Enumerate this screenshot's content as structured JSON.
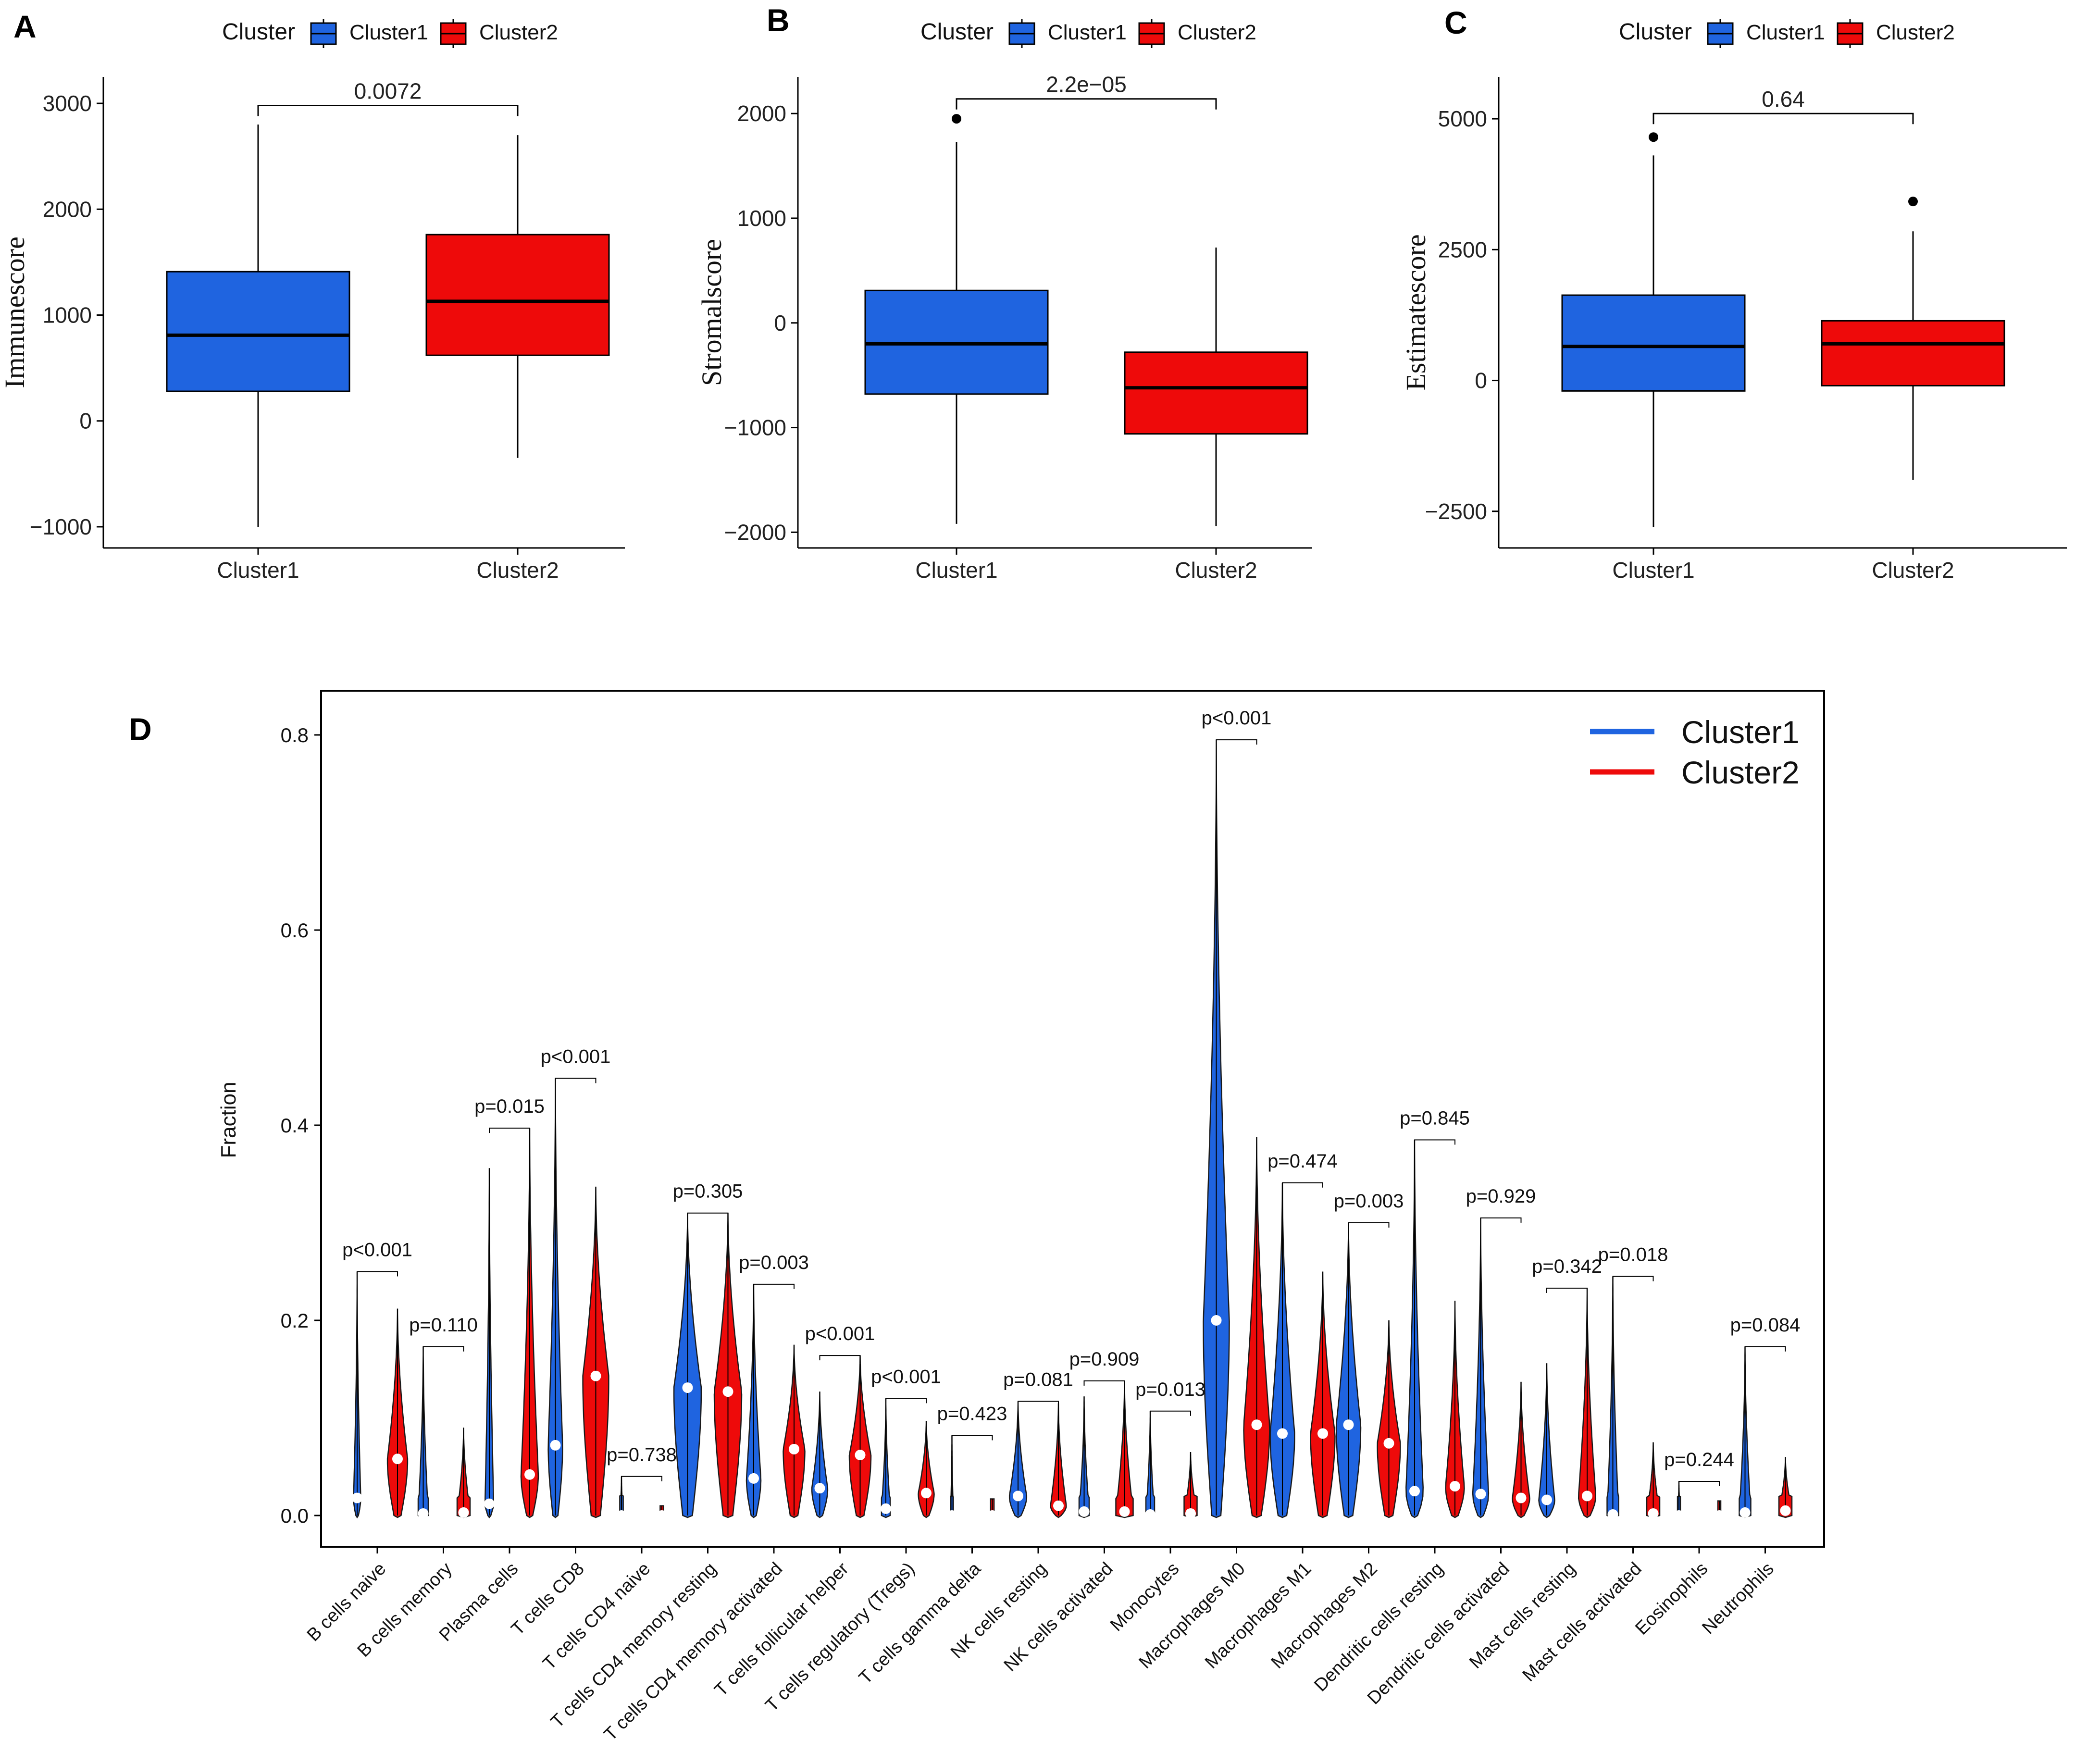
{
  "colors": {
    "cluster1": "#1f64e0",
    "cluster2": "#ee0a0a",
    "axis": "#000000"
  },
  "chart_data": [
    {
      "panel": "A",
      "type": "box",
      "legend": {
        "title": "Cluster",
        "entries": [
          "Cluster1",
          "Cluster2"
        ]
      },
      "ylabel": "Immunescore",
      "categories": [
        "Cluster1",
        "Cluster2"
      ],
      "ylim": [
        -1200,
        3250
      ],
      "yticks": [
        -1000,
        0,
        1000,
        2000,
        3000
      ],
      "ytick_labels": [
        "−1000",
        "0",
        "1000",
        "2000",
        "3000"
      ],
      "boxes": [
        {
          "name": "Cluster1",
          "min": -1000,
          "q1": 280,
          "median": 810,
          "q3": 1410,
          "max": 2800,
          "outliers": []
        },
        {
          "name": "Cluster2",
          "min": -350,
          "q1": 620,
          "median": 1130,
          "q3": 1760,
          "max": 2700,
          "outliers": []
        }
      ],
      "pvalue": "0.0072",
      "bracket_y": 2980
    },
    {
      "panel": "B",
      "type": "box",
      "legend": {
        "title": "Cluster",
        "entries": [
          "Cluster1",
          "Cluster2"
        ]
      },
      "ylabel": "Stromalscore",
      "categories": [
        "Cluster1",
        "Cluster2"
      ],
      "ylim": [
        -2150,
        2350
      ],
      "yticks": [
        -2000,
        -1000,
        0,
        1000,
        2000
      ],
      "ytick_labels": [
        "−2000",
        "−1000",
        "0",
        "1000",
        "2000"
      ],
      "boxes": [
        {
          "name": "Cluster1",
          "min": -1920,
          "q1": -680,
          "median": -200,
          "q3": 310,
          "max": 1730,
          "outliers": [
            1950
          ]
        },
        {
          "name": "Cluster2",
          "min": -1940,
          "q1": -1060,
          "median": -620,
          "q3": -280,
          "max": 720,
          "outliers": []
        }
      ],
      "pvalue": "2.2e−05",
      "bracket_y": 2140
    },
    {
      "panel": "C",
      "type": "box",
      "legend": {
        "title": "Cluster",
        "entries": [
          "Cluster1",
          "Cluster2"
        ]
      },
      "ylabel": "Estimatescore",
      "categories": [
        "Cluster1",
        "Cluster2"
      ],
      "ylim": [
        -3200,
        5800
      ],
      "yticks": [
        -2500,
        0,
        2500,
        5000
      ],
      "ytick_labels": [
        "−2500",
        "0",
        "2500",
        "5000"
      ],
      "boxes": [
        {
          "name": "Cluster1",
          "min": -2800,
          "q1": -200,
          "median": 650,
          "q3": 1630,
          "max": 4300,
          "outliers": [
            4650
          ]
        },
        {
          "name": "Cluster2",
          "min": -1900,
          "q1": -100,
          "median": 700,
          "q3": 1140,
          "max": 2850,
          "outliers": [
            3420
          ]
        }
      ],
      "pvalue": "0.64",
      "bracket_y": 5100
    },
    {
      "panel": "D",
      "type": "violin",
      "ylabel": "Fraction",
      "ylim": [
        -0.03,
        0.85
      ],
      "yticks": [
        0.0,
        0.2,
        0.4,
        0.6,
        0.8
      ],
      "ytick_labels": [
        "0.0",
        "0.2",
        "0.4",
        "0.6",
        "0.8"
      ],
      "legend": {
        "entries": [
          "Cluster1",
          "Cluster2"
        ],
        "position": "top-right"
      },
      "categories": [
        {
          "name": "B cells naive",
          "p": "p<0.001",
          "c1": {
            "median": 0.018,
            "max": 0.25,
            "width": 0.25
          },
          "c2": {
            "median": 0.058,
            "max": 0.212,
            "width": 0.7
          }
        },
        {
          "name": "B cells memory",
          "p": "p=0.110",
          "c1": {
            "median": 0.002,
            "max": 0.173,
            "width": 0.35
          },
          "c2": {
            "median": 0.003,
            "max": 0.09,
            "width": 0.45
          }
        },
        {
          "name": "Plasma cells",
          "p": "p=0.015",
          "c1": {
            "median": 0.012,
            "max": 0.356,
            "width": 0.3
          },
          "c2": {
            "median": 0.042,
            "max": 0.397,
            "width": 0.6
          }
        },
        {
          "name": "T cells CD8",
          "p": "p<0.001",
          "c1": {
            "median": 0.072,
            "max": 0.448,
            "width": 0.5
          },
          "c2": {
            "median": 0.143,
            "max": 0.337,
            "width": 0.9
          }
        },
        {
          "name": "T cells CD4 naive",
          "p": "p=0.738",
          "c1": {
            "median": 0.0,
            "max": 0.04,
            "width": 0.12
          },
          "c2": {
            "median": 0.0,
            "max": 0.01,
            "width": 0.12
          }
        },
        {
          "name": "T cells CD4 memory resting",
          "p": "p=0.305",
          "c1": {
            "median": 0.131,
            "max": 0.31,
            "width": 0.95
          },
          "c2": {
            "median": 0.127,
            "max": 0.31,
            "width": 0.95
          }
        },
        {
          "name": "T cells CD4 memory activated",
          "p": "p=0.003",
          "c1": {
            "median": 0.038,
            "max": 0.237,
            "width": 0.5
          },
          "c2": {
            "median": 0.068,
            "max": 0.175,
            "width": 0.75
          }
        },
        {
          "name": "T cells follicular helper",
          "p": "p<0.001",
          "c1": {
            "median": 0.028,
            "max": 0.127,
            "width": 0.55
          },
          "c2": {
            "median": 0.062,
            "max": 0.164,
            "width": 0.75
          }
        },
        {
          "name": "T cells regulatory (Tregs)",
          "p": "p<0.001",
          "c1": {
            "median": 0.007,
            "max": 0.12,
            "width": 0.3
          },
          "c2": {
            "median": 0.023,
            "max": 0.097,
            "width": 0.55
          }
        },
        {
          "name": "T cells gamma delta",
          "p": "p=0.423",
          "c1": {
            "median": 0.0,
            "max": 0.082,
            "width": 0.1
          },
          "c2": {
            "median": 0.0,
            "max": 0.017,
            "width": 0.12
          }
        },
        {
          "name": "NK cells resting",
          "p": "p=0.081",
          "c1": {
            "median": 0.02,
            "max": 0.117,
            "width": 0.6
          },
          "c2": {
            "median": 0.01,
            "max": 0.115,
            "width": 0.55
          }
        },
        {
          "name": "NK cells activated",
          "p": "p=0.909",
          "c1": {
            "median": 0.004,
            "max": 0.122,
            "width": 0.35
          },
          "c2": {
            "median": 0.004,
            "max": 0.138,
            "width": 0.6
          }
        },
        {
          "name": "Monocytes",
          "p": "p=0.013",
          "c1": {
            "median": 0.001,
            "max": 0.107,
            "width": 0.3
          },
          "c2": {
            "median": 0.002,
            "max": 0.065,
            "width": 0.45
          }
        },
        {
          "name": "Macrophages M0",
          "p": "p<0.001",
          "c1": {
            "median": 0.2,
            "max": 0.795,
            "width": 0.9
          },
          "c2": {
            "median": 0.093,
            "max": 0.388,
            "width": 0.9
          }
        },
        {
          "name": "Macrophages M1",
          "p": "p=0.474",
          "c1": {
            "median": 0.084,
            "max": 0.341,
            "width": 0.85
          },
          "c2": {
            "median": 0.084,
            "max": 0.25,
            "width": 0.85
          }
        },
        {
          "name": "Macrophages M2",
          "p": "p=0.003",
          "c1": {
            "median": 0.093,
            "max": 0.3,
            "width": 0.85
          },
          "c2": {
            "median": 0.074,
            "max": 0.2,
            "width": 0.8
          }
        },
        {
          "name": "Dendritic cells resting",
          "p": "p=0.845",
          "c1": {
            "median": 0.025,
            "max": 0.385,
            "width": 0.6
          },
          "c2": {
            "median": 0.03,
            "max": 0.22,
            "width": 0.65
          }
        },
        {
          "name": "Dendritic cells activated",
          "p": "p=0.929",
          "c1": {
            "median": 0.022,
            "max": 0.305,
            "width": 0.55
          },
          "c2": {
            "median": 0.018,
            "max": 0.137,
            "width": 0.6
          }
        },
        {
          "name": "Mast cells resting",
          "p": "p=0.342",
          "c1": {
            "median": 0.016,
            "max": 0.156,
            "width": 0.55
          },
          "c2": {
            "median": 0.02,
            "max": 0.233,
            "width": 0.6
          }
        },
        {
          "name": "Mast cells activated",
          "p": "p=0.018",
          "c1": {
            "median": 0.001,
            "max": 0.245,
            "width": 0.4
          },
          "c2": {
            "median": 0.002,
            "max": 0.075,
            "width": 0.45
          }
        },
        {
          "name": "Eosinophils",
          "p": "p=0.244",
          "c1": {
            "median": 0.0,
            "max": 0.035,
            "width": 0.1
          },
          "c2": {
            "median": 0.0,
            "max": 0.015,
            "width": 0.1
          }
        },
        {
          "name": "Neutrophils",
          "p": "p=0.084",
          "c1": {
            "median": 0.003,
            "max": 0.173,
            "width": 0.4
          },
          "c2": {
            "median": 0.005,
            "max": 0.06,
            "width": 0.45
          }
        }
      ]
    }
  ]
}
